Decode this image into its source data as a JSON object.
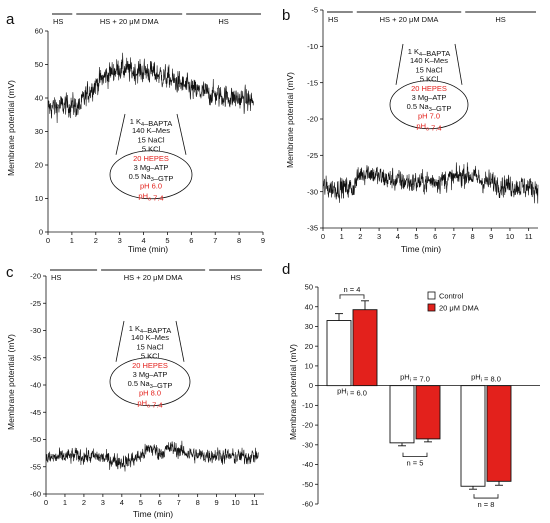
{
  "panels": [
    {
      "letter": "a",
      "ylabel": "Membrane potential (mV)",
      "xlabel": "Time (min)",
      "treatments": [
        "HS",
        "HS + 20 μM DMA",
        "HS"
      ],
      "solution_lines": [
        "1 K4–BAPTA",
        "140 K–Mes",
        "15 NaCl",
        "5 KCl",
        "20 HEPES",
        "3 Mg–ATP",
        "0.5 Na3–GTP",
        "pH 6.0",
        "pHo 7.4"
      ]
    },
    {
      "letter": "b",
      "ylabel": "Membrane potential (mV)",
      "xlabel": "Time (min)",
      "treatments": [
        "HS",
        "HS + 20 μM DMA",
        "HS"
      ],
      "solution_lines": [
        "1 K4–BAPTA",
        "140 K–Mes",
        "15 NaCl",
        "5 KCl",
        "20 HEPES",
        "3 Mg–ATP",
        "0.5 Na3–GTP",
        "pH 7.0",
        "pHo 7.4"
      ]
    },
    {
      "letter": "c",
      "ylabel": "Membrane potential (mV)",
      "xlabel": "Time (min)",
      "treatments": [
        "HS",
        "HS + 20 μM DMA",
        "HS"
      ],
      "solution_lines": [
        "1 K4–BAPTA",
        "140 K–Mes",
        "15 NaCl",
        "5 KCl",
        "20 HEPES",
        "3 Mg–ATP",
        "0.5 Na3–GTP",
        "pH 8.0",
        "pHo 7.4"
      ]
    },
    {
      "letter": "d",
      "ylabel": "Membrane potential (mV)",
      "legend": [
        "Control",
        "20 μM DMA"
      ],
      "n_labels": [
        "n = 4",
        "n = 5",
        "n = 8"
      ],
      "group_labels": [
        "pHi = 6.0",
        "pHi = 7.0",
        "pHi = 8.0"
      ]
    }
  ],
  "colors": {
    "control": "#ffffff",
    "dma": "#e3211c",
    "red_text": "#e3211c",
    "trace": "#111111"
  },
  "chart_data": [
    {
      "type": "line",
      "panel": "a",
      "x_range": [
        0,
        9
      ],
      "ylim": [
        0,
        60
      ],
      "yticks": [
        0,
        10,
        20,
        30,
        40,
        50,
        60
      ],
      "xticks": [
        0,
        1,
        2,
        3,
        4,
        5,
        6,
        7,
        8,
        9
      ],
      "treatment_periods_min": [
        [
          0,
          1.1
        ],
        [
          1.1,
          5.7
        ],
        [
          5.7,
          9
        ]
      ],
      "trace_keypoints": {
        "x": [
          0,
          1.0,
          1.3,
          1.8,
          2.5,
          3.0,
          3.5,
          4.2,
          5.0,
          5.6,
          6.2,
          7.0,
          7.8,
          8.6
        ],
        "y": [
          37,
          38,
          37,
          43,
          47,
          49,
          48,
          48,
          46,
          44,
          42,
          41,
          40,
          39
        ]
      }
    },
    {
      "type": "line",
      "panel": "b",
      "x_range": [
        0,
        11.5
      ],
      "ylim": [
        -35,
        -5
      ],
      "yticks": [
        -35,
        -30,
        -25,
        -20,
        -15,
        -10,
        -5
      ],
      "xticks": [
        0,
        1,
        2,
        3,
        4,
        5,
        6,
        7,
        8,
        9,
        10,
        11
      ],
      "treatment_periods_min": [
        [
          0,
          1.7
        ],
        [
          1.7,
          7.5
        ],
        [
          7.5,
          11.5
        ]
      ],
      "trace_keypoints": {
        "x": [
          0,
          1.6,
          2.0,
          2.4,
          3.0,
          4.0,
          5.0,
          6.0,
          7.0,
          7.6,
          8.5,
          9.5,
          10.5,
          11.5
        ],
        "y": [
          -29.5,
          -29.5,
          -27.5,
          -27.2,
          -28,
          -28.5,
          -28.8,
          -28.5,
          -28.2,
          -27.5,
          -28.5,
          -29,
          -29.3,
          -29.5
        ]
      }
    },
    {
      "type": "line",
      "panel": "c",
      "x_range": [
        0,
        11.5
      ],
      "ylim": [
        -60,
        -20
      ],
      "yticks": [
        -60,
        -55,
        -50,
        -45,
        -40,
        -35,
        -30,
        -25,
        -20
      ],
      "xticks": [
        0,
        1,
        2,
        3,
        4,
        5,
        6,
        7,
        8,
        9,
        10,
        11
      ],
      "treatment_periods_min": [
        [
          0,
          2.8
        ],
        [
          2.8,
          8.5
        ],
        [
          8.5,
          11.5
        ]
      ],
      "trace_keypoints": {
        "x": [
          0,
          1.5,
          2.8,
          3.5,
          4.2,
          5.0,
          5.5,
          6.0,
          6.6,
          7.2,
          8.0,
          9.0,
          10.0,
          11.2
        ],
        "y": [
          -53.5,
          -53,
          -53.2,
          -53.8,
          -54.2,
          -53,
          -51.5,
          -52.5,
          -51.5,
          -52.2,
          -53,
          -52.8,
          -53.2,
          -53
        ]
      }
    },
    {
      "type": "bar",
      "panel": "d",
      "categories": [
        "pHi = 6.0",
        "pHi = 7.0",
        "pHi = 8.0"
      ],
      "series": [
        {
          "name": "Control",
          "values": [
            33,
            -29,
            -51
          ],
          "errors": [
            3.5,
            1.5,
            1.5
          ]
        },
        {
          "name": "20 μM DMA",
          "values": [
            38.5,
            -27,
            -48.5
          ],
          "errors": [
            4.5,
            1.5,
            2.0
          ]
        }
      ],
      "ylim": [
        -60,
        50
      ],
      "yticks": [
        -60,
        -50,
        -40,
        -30,
        -20,
        -10,
        0,
        10,
        20,
        30,
        40,
        50
      ],
      "legend_position": "top-right"
    }
  ]
}
